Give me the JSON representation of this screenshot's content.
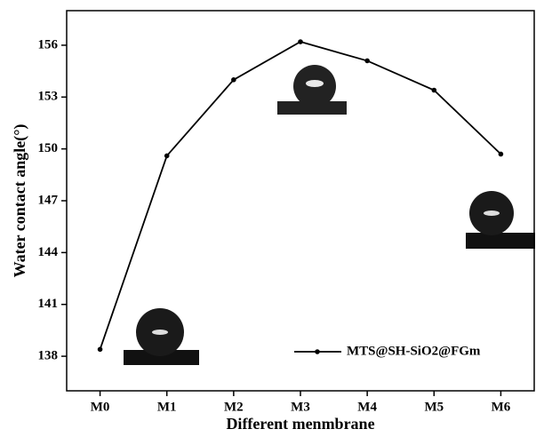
{
  "chart_data": {
    "type": "line",
    "x_label": "Different menmbrane",
    "y_label": "Water contact angle(°)",
    "categories": [
      "M0",
      "M1",
      "M2",
      "M3",
      "M4",
      "M5",
      "M6"
    ],
    "series": [
      {
        "name": "MTS@SH-SiO2@FGm",
        "color": "#000000",
        "values": [
          138.4,
          149.6,
          154.0,
          156.2,
          155.1,
          153.4,
          149.7
        ]
      }
    ],
    "ylim": [
      136,
      158
    ],
    "yticks": [
      138,
      141,
      144,
      147,
      150,
      153,
      156
    ],
    "legend": "lower right"
  }
}
